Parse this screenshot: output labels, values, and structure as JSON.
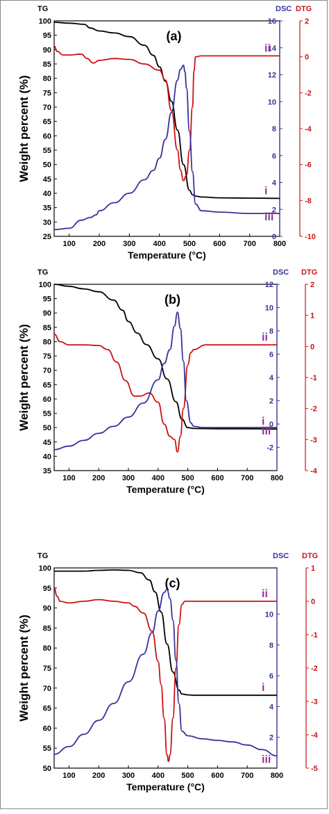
{
  "chart_data": [
    {
      "type": "line",
      "panel_label": "(a)",
      "xlabel": "Temperature (°C)",
      "ylabel": "Weight percent (%)",
      "axis_titles": {
        "left": "TG",
        "right1": "DSC",
        "right2": "DTG"
      },
      "xlim": [
        50,
        800
      ],
      "x_ticks": [
        "100",
        "200",
        "300",
        "400",
        "500",
        "600",
        "700",
        "800"
      ],
      "ylim_left": [
        25,
        100
      ],
      "left_ticks": [
        "25",
        "30",
        "35",
        "40",
        "45",
        "50",
        "55",
        "60",
        "65",
        "70",
        "75",
        "80",
        "85",
        "90",
        "95",
        "100"
      ],
      "ylim_right1": [
        0,
        16
      ],
      "right1_ticks": [
        "0",
        "2",
        "4",
        "6",
        "8",
        "10",
        "12",
        "14",
        "16"
      ],
      "ylim_right2": [
        -10,
        2
      ],
      "right2_ticks": [
        "-10",
        "-8",
        "-6",
        "-4",
        "-2",
        "0",
        "2"
      ],
      "series": [
        {
          "name": "i",
          "axis": "left",
          "color": "#000000",
          "x": [
            50,
            100,
            150,
            170,
            200,
            250,
            300,
            350,
            380,
            400,
            420,
            440,
            460,
            480,
            500,
            510,
            520,
            540,
            600,
            700,
            800
          ],
          "y": [
            99.5,
            99.2,
            98.8,
            97.5,
            96.5,
            95.8,
            94.5,
            91.5,
            88,
            84,
            79,
            72,
            62,
            50,
            41,
            39.5,
            39,
            38.7,
            38.4,
            38.3,
            38.2
          ]
        },
        {
          "name": "ii",
          "axis": "right2",
          "color": "#cc1111",
          "x": [
            50,
            60,
            80,
            100,
            140,
            160,
            180,
            200,
            250,
            300,
            350,
            400,
            420,
            440,
            460,
            470,
            480,
            490,
            500,
            510,
            515,
            520,
            540,
            600,
            700,
            800
          ],
          "y": [
            0.6,
            0.3,
            0.1,
            0.1,
            0.15,
            -0.1,
            -0.35,
            -0.2,
            -0.1,
            -0.15,
            -0.4,
            -0.75,
            -1.3,
            -3,
            -5.2,
            -6.3,
            -6.9,
            -6.6,
            -5.2,
            -2.8,
            -0.8,
            0,
            0.05,
            0.05,
            0.05,
            0.05
          ]
        },
        {
          "name": "iii",
          "axis": "right1",
          "color": "#333399",
          "x": [
            50,
            100,
            140,
            170,
            190,
            200,
            250,
            300,
            350,
            380,
            400,
            420,
            440,
            460,
            470,
            480,
            485,
            490,
            500,
            510,
            520,
            540,
            600,
            700,
            800
          ],
          "y": [
            0.5,
            0.6,
            1.2,
            1.4,
            1.6,
            1.9,
            2.5,
            3.2,
            4.2,
            4.9,
            5.8,
            7.2,
            9.2,
            11.6,
            12.4,
            12.7,
            12.2,
            11.0,
            7.8,
            4.8,
            2.4,
            1.9,
            1.8,
            1.7,
            1.7
          ]
        }
      ]
    },
    {
      "type": "line",
      "panel_label": "(b)",
      "xlabel": "Temperature (°C)",
      "ylabel": "Weight percent (%)",
      "axis_titles": {
        "left": "TG",
        "right1": "DSC",
        "right2": "DTG"
      },
      "xlim": [
        50,
        800
      ],
      "x_ticks": [
        "100",
        "200",
        "300",
        "400",
        "500",
        "600",
        "700",
        "800"
      ],
      "ylim_left": [
        35,
        100
      ],
      "left_ticks": [
        "35",
        "40",
        "45",
        "50",
        "55",
        "60",
        "65",
        "70",
        "75",
        "80",
        "85",
        "90",
        "95",
        "100"
      ],
      "ylim_right1": [
        -4,
        12
      ],
      "right1_ticks": [
        "-2",
        "0",
        "2",
        "4",
        "6",
        "8",
        "10",
        "12"
      ],
      "ylim_right2": [
        -4,
        2
      ],
      "right2_ticks": [
        "-4",
        "-3",
        "-2",
        "-1",
        "0",
        "1",
        "2"
      ],
      "series": [
        {
          "name": "i",
          "axis": "left",
          "color": "#000000",
          "x": [
            50,
            100,
            150,
            200,
            250,
            280,
            300,
            330,
            360,
            400,
            430,
            460,
            480,
            500,
            520,
            600,
            700,
            800
          ],
          "y": [
            100,
            99.3,
            98.4,
            97.4,
            94.5,
            91,
            87,
            83,
            79,
            74,
            67,
            59,
            53,
            50,
            49.7,
            49.6,
            49.6,
            49.5
          ],
          "name_color": "#993399"
        },
        {
          "name": "ii",
          "axis": "right2",
          "color": "#cc1111",
          "x": [
            50,
            70,
            100,
            150,
            200,
            230,
            260,
            290,
            320,
            340,
            370,
            400,
            420,
            440,
            455,
            465,
            475,
            485,
            500,
            510,
            520,
            560,
            600,
            700,
            800
          ],
          "y": [
            0.4,
            0.15,
            0.05,
            0.05,
            0.03,
            -0.1,
            -0.5,
            -1.1,
            -1.6,
            -1.6,
            -1.5,
            -1.8,
            -2.5,
            -2.9,
            -3.0,
            -3.4,
            -2.9,
            -2,
            -0.6,
            -0.2,
            -0.1,
            0.05,
            0.05,
            0.05,
            0.05
          ]
        },
        {
          "name": "iii",
          "axis": "right1",
          "color": "#333399",
          "x": [
            50,
            100,
            150,
            200,
            250,
            300,
            350,
            400,
            420,
            440,
            455,
            465,
            475,
            485,
            495,
            510,
            520,
            550,
            600,
            700,
            800
          ],
          "y": [
            -2.2,
            -1.9,
            -1.4,
            -0.8,
            -0.2,
            0.6,
            1.8,
            3.8,
            5.2,
            6.4,
            8.4,
            9.6,
            8.2,
            5.4,
            2,
            0.1,
            -0.2,
            -0.3,
            -0.3,
            -0.3,
            -0.3
          ]
        }
      ]
    },
    {
      "type": "line",
      "panel_label": "(c)",
      "xlabel": "Temperature (°C)",
      "ylabel": "Weight percent (%)",
      "axis_titles": {
        "left": "TG",
        "right1": "DSC",
        "right2": "DTG"
      },
      "xlim": [
        50,
        800
      ],
      "x_ticks": [
        "100",
        "200",
        "300",
        "400",
        "500",
        "600",
        "700",
        "800"
      ],
      "ylim_left": [
        50,
        100
      ],
      "left_ticks": [
        "50",
        "55",
        "60",
        "65",
        "70",
        "75",
        "80",
        "85",
        "90",
        "95",
        "100"
      ],
      "ylim_right1": [
        0,
        13
      ],
      "right1_ticks": [
        "2",
        "4",
        "6",
        "8",
        "10"
      ],
      "ylim_right2": [
        -5,
        1
      ],
      "right2_ticks": [
        "-5",
        "-4",
        "-3",
        "-2",
        "-1",
        "0",
        "1"
      ],
      "series": [
        {
          "name": "i",
          "axis": "left",
          "color": "#000000",
          "x": [
            50,
            100,
            150,
            200,
            250,
            300,
            340,
            370,
            390,
            410,
            430,
            450,
            470,
            480,
            500,
            520,
            600,
            700,
            800
          ],
          "y": [
            99.2,
            99.2,
            99.2,
            99.4,
            99.5,
            99.4,
            98.8,
            97,
            94,
            89,
            81,
            74,
            69.5,
            68.5,
            68.3,
            68.2,
            68.2,
            68.2,
            68.2
          ]
        },
        {
          "name": "ii",
          "axis": "right2",
          "color": "#cc1111",
          "x": [
            50,
            60,
            70,
            100,
            150,
            200,
            250,
            300,
            320,
            350,
            380,
            400,
            410,
            420,
            430,
            435,
            440,
            450,
            460,
            470,
            480,
            490,
            500,
            520,
            600,
            700,
            800
          ],
          "y": [
            0.4,
            0.15,
            0,
            -0.05,
            0,
            0.05,
            0,
            -0.05,
            -0.15,
            -0.35,
            -0.9,
            -1.8,
            -2.5,
            -3.5,
            -4.6,
            -4.8,
            -4.6,
            -3.5,
            -2,
            -0.7,
            -0.1,
            0,
            0,
            0,
            0,
            0,
            0
          ]
        },
        {
          "name": "iii",
          "axis": "right1",
          "color": "#333399",
          "x": [
            50,
            100,
            150,
            200,
            250,
            300,
            350,
            380,
            400,
            420,
            430,
            440,
            450,
            460,
            470,
            480,
            500,
            550,
            600,
            650,
            700,
            750,
            800
          ],
          "y": [
            0.9,
            1.4,
            2.2,
            3.1,
            4.2,
            5.6,
            7.4,
            8.8,
            10.2,
            11.4,
            11.6,
            11.0,
            9.6,
            7.0,
            4.2,
            2.4,
            2.1,
            1.9,
            1.8,
            1.7,
            1.5,
            1.2,
            0.8
          ]
        }
      ]
    }
  ]
}
